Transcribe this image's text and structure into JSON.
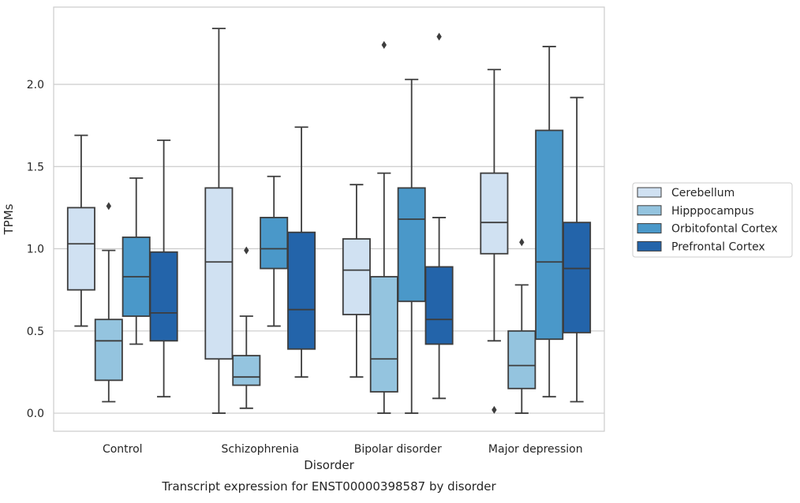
{
  "chart_data": {
    "type": "boxplot",
    "title": "",
    "caption": "Transcript expression for ENST00000398587 by disorder",
    "xlabel": "Disorder",
    "ylabel": "TPMs",
    "ylim": [
      -0.11,
      2.47
    ],
    "yticks": [
      0.0,
      0.5,
      1.0,
      1.5,
      2.0
    ],
    "ytick_labels": [
      "0.0",
      "0.5",
      "1.0",
      "1.5",
      "2.0"
    ],
    "grid": true,
    "legend_position": "right",
    "categories": [
      "Control",
      "Schizophrenia",
      "Bipolar disorder",
      "Major depression"
    ],
    "series": [
      {
        "name": "Cerebellum",
        "color": "#d0e1f2",
        "boxes": [
          {
            "whislo": 0.53,
            "q1": 0.75,
            "med": 1.03,
            "q3": 1.25,
            "whishi": 1.69,
            "fliers": []
          },
          {
            "whislo": 0.0,
            "q1": 0.33,
            "med": 0.92,
            "q3": 1.37,
            "whishi": 2.34,
            "fliers": []
          },
          {
            "whislo": 0.22,
            "q1": 0.6,
            "med": 0.87,
            "q3": 1.06,
            "whishi": 1.39,
            "fliers": []
          },
          {
            "whislo": 0.44,
            "q1": 0.97,
            "med": 1.16,
            "q3": 1.46,
            "whishi": 2.09,
            "fliers": [
              0.02
            ]
          }
        ]
      },
      {
        "name": "Hipppocampus",
        "color": "#94c4df",
        "boxes": [
          {
            "whislo": 0.07,
            "q1": 0.2,
            "med": 0.44,
            "q3": 0.57,
            "whishi": 0.99,
            "fliers": [
              1.26
            ]
          },
          {
            "whislo": 0.03,
            "q1": 0.17,
            "med": 0.22,
            "q3": 0.35,
            "whishi": 0.59,
            "fliers": [
              0.99
            ]
          },
          {
            "whislo": 0.0,
            "q1": 0.13,
            "med": 0.33,
            "q3": 0.83,
            "whishi": 1.46,
            "fliers": [
              2.24
            ]
          },
          {
            "whislo": 0.0,
            "q1": 0.15,
            "med": 0.29,
            "q3": 0.5,
            "whishi": 0.78,
            "fliers": [
              1.04
            ]
          }
        ]
      },
      {
        "name": "Orbitofontal Cortex",
        "color": "#4a98c9",
        "boxes": [
          {
            "whislo": 0.42,
            "q1": 0.59,
            "med": 0.83,
            "q3": 1.07,
            "whishi": 1.43,
            "fliers": []
          },
          {
            "whislo": 0.53,
            "q1": 0.88,
            "med": 1.0,
            "q3": 1.19,
            "whishi": 1.44,
            "fliers": []
          },
          {
            "whislo": 0.0,
            "q1": 0.68,
            "med": 1.18,
            "q3": 1.37,
            "whishi": 2.03,
            "fliers": []
          },
          {
            "whislo": 0.1,
            "q1": 0.45,
            "med": 0.92,
            "q3": 1.72,
            "whishi": 2.23,
            "fliers": []
          }
        ]
      },
      {
        "name": "Prefrontal Cortex",
        "color": "#2364aa",
        "boxes": [
          {
            "whislo": 0.1,
            "q1": 0.44,
            "med": 0.61,
            "q3": 0.98,
            "whishi": 1.66,
            "fliers": []
          },
          {
            "whislo": 0.22,
            "q1": 0.39,
            "med": 0.63,
            "q3": 1.1,
            "whishi": 1.74,
            "fliers": []
          },
          {
            "whislo": 0.09,
            "q1": 0.42,
            "med": 0.57,
            "q3": 0.89,
            "whishi": 1.19,
            "fliers": [
              2.29
            ]
          },
          {
            "whislo": 0.07,
            "q1": 0.49,
            "med": 0.88,
            "q3": 1.16,
            "whishi": 1.92,
            "fliers": []
          }
        ]
      }
    ]
  }
}
